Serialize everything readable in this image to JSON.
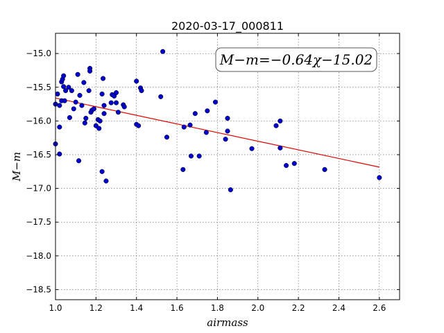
{
  "chart_data": {
    "type": "scatter",
    "title": "2020-03-17_000811",
    "xlabel": "airmass",
    "ylabel": "M−m",
    "xlim": [
      1.0,
      2.7
    ],
    "ylim": [
      -18.65,
      -14.7
    ],
    "grid": true,
    "xticks": [
      "1.0",
      "1.2",
      "1.4",
      "1.6",
      "1.8",
      "2.0",
      "2.2",
      "2.4",
      "2.6"
    ],
    "xtick_values": [
      1.0,
      1.2,
      1.4,
      1.6,
      1.8,
      2.0,
      2.2,
      2.4,
      2.6
    ],
    "yticks": [
      "−15.0",
      "−15.5",
      "−16.0",
      "−16.5",
      "−17.0",
      "−17.5",
      "−18.0",
      "−18.5"
    ],
    "ytick_values": [
      -15.0,
      -15.5,
      -16.0,
      -16.5,
      -17.0,
      -17.5,
      -18.0,
      -18.5
    ],
    "annotation": "M−m=−0.64χ−15.02",
    "marker_color": "#0000cc",
    "fit_color": "#dd0000",
    "fit": {
      "slope": -0.64,
      "intercept": -15.02,
      "x_range": [
        1.0,
        2.6
      ]
    },
    "series": [
      {
        "points": [
          [
            1.0,
            -15.75
          ],
          [
            1.0,
            -16.34
          ],
          [
            1.01,
            -15.6
          ],
          [
            1.02,
            -16.49
          ],
          [
            1.02,
            -16.09
          ],
          [
            1.02,
            -15.77
          ],
          [
            1.03,
            -15.7
          ],
          [
            1.03,
            -15.42
          ],
          [
            1.035,
            -15.38
          ],
          [
            1.04,
            -15.33
          ],
          [
            1.04,
            -15.49
          ],
          [
            1.045,
            -15.7
          ],
          [
            1.05,
            -15.55
          ],
          [
            1.065,
            -15.5
          ],
          [
            1.07,
            -15.95
          ],
          [
            1.08,
            -15.55
          ],
          [
            1.09,
            -15.82
          ],
          [
            1.1,
            -15.72
          ],
          [
            1.11,
            -15.31
          ],
          [
            1.115,
            -16.59
          ],
          [
            1.12,
            -15.62
          ],
          [
            1.13,
            -15.77
          ],
          [
            1.14,
            -15.43
          ],
          [
            1.145,
            -16.03
          ],
          [
            1.15,
            -15.96
          ],
          [
            1.165,
            -15.55
          ],
          [
            1.17,
            -15.22
          ],
          [
            1.17,
            -15.26
          ],
          [
            1.175,
            -15.87
          ],
          [
            1.18,
            -15.84
          ],
          [
            1.19,
            -15.82
          ],
          [
            1.2,
            -16.07
          ],
          [
            1.21,
            -15.98
          ],
          [
            1.215,
            -16.11
          ],
          [
            1.22,
            -16.0
          ],
          [
            1.23,
            -16.75
          ],
          [
            1.23,
            -15.6
          ],
          [
            1.235,
            -15.37
          ],
          [
            1.24,
            -15.77
          ],
          [
            1.24,
            -15.89
          ],
          [
            1.25,
            -16.89
          ],
          [
            1.275,
            -15.73
          ],
          [
            1.28,
            -15.61
          ],
          [
            1.29,
            -15.63
          ],
          [
            1.3,
            -15.58
          ],
          [
            1.3,
            -15.73
          ],
          [
            1.31,
            -15.87
          ],
          [
            1.335,
            -15.76
          ],
          [
            1.34,
            -15.79
          ],
          [
            1.4,
            -15.41
          ],
          [
            1.4,
            -16.05
          ],
          [
            1.41,
            -16.07
          ],
          [
            1.42,
            -15.51
          ],
          [
            1.425,
            -15.55
          ],
          [
            1.52,
            -15.64
          ],
          [
            1.53,
            -14.97
          ],
          [
            1.55,
            -16.24
          ],
          [
            1.63,
            -16.72
          ],
          [
            1.635,
            -16.09
          ],
          [
            1.665,
            -16.06
          ],
          [
            1.67,
            -16.52
          ],
          [
            1.69,
            -15.89
          ],
          [
            1.71,
            -16.52
          ],
          [
            1.745,
            -16.17
          ],
          [
            1.75,
            -15.85
          ],
          [
            1.79,
            -15.72
          ],
          [
            1.84,
            -16.27
          ],
          [
            1.85,
            -16.15
          ],
          [
            1.85,
            -15.96
          ],
          [
            1.865,
            -17.02
          ],
          [
            1.97,
            -16.41
          ],
          [
            2.09,
            -16.07
          ],
          [
            2.11,
            -16.0
          ],
          [
            2.11,
            -16.4
          ],
          [
            2.14,
            -16.66
          ],
          [
            2.18,
            -16.63
          ],
          [
            2.33,
            -16.72
          ],
          [
            2.6,
            -16.84
          ]
        ]
      }
    ]
  }
}
